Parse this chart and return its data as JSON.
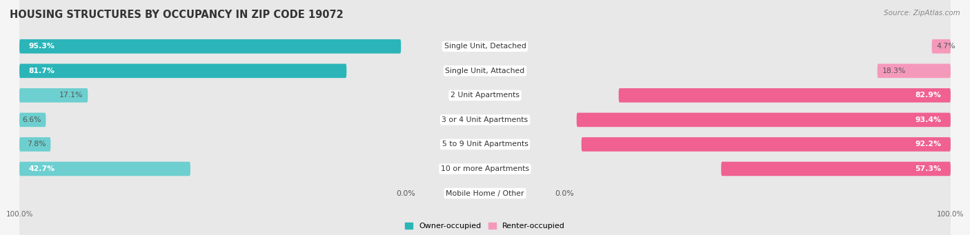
{
  "title": "HOUSING STRUCTURES BY OCCUPANCY IN ZIP CODE 19072",
  "source": "Source: ZipAtlas.com",
  "categories": [
    "Single Unit, Detached",
    "Single Unit, Attached",
    "2 Unit Apartments",
    "3 or 4 Unit Apartments",
    "5 to 9 Unit Apartments",
    "10 or more Apartments",
    "Mobile Home / Other"
  ],
  "owner_pct": [
    95.3,
    81.7,
    17.1,
    6.6,
    7.8,
    42.7,
    0.0
  ],
  "renter_pct": [
    4.7,
    18.3,
    82.9,
    93.4,
    92.2,
    57.3,
    0.0
  ],
  "owner_color_dark": "#2bb5b8",
  "owner_color_light": "#6dcfcf",
  "renter_color_dark": "#f06090",
  "renter_color_light": "#f599bb",
  "row_bg_color": "#e8e8e8",
  "bg_color": "#f5f5f5",
  "title_fontsize": 10.5,
  "label_fontsize": 7.8,
  "pct_fontsize": 7.8,
  "tick_fontsize": 7.5,
  "source_fontsize": 7.5,
  "legend_fontsize": 8.0,
  "owner_dark_threshold": 50.0
}
